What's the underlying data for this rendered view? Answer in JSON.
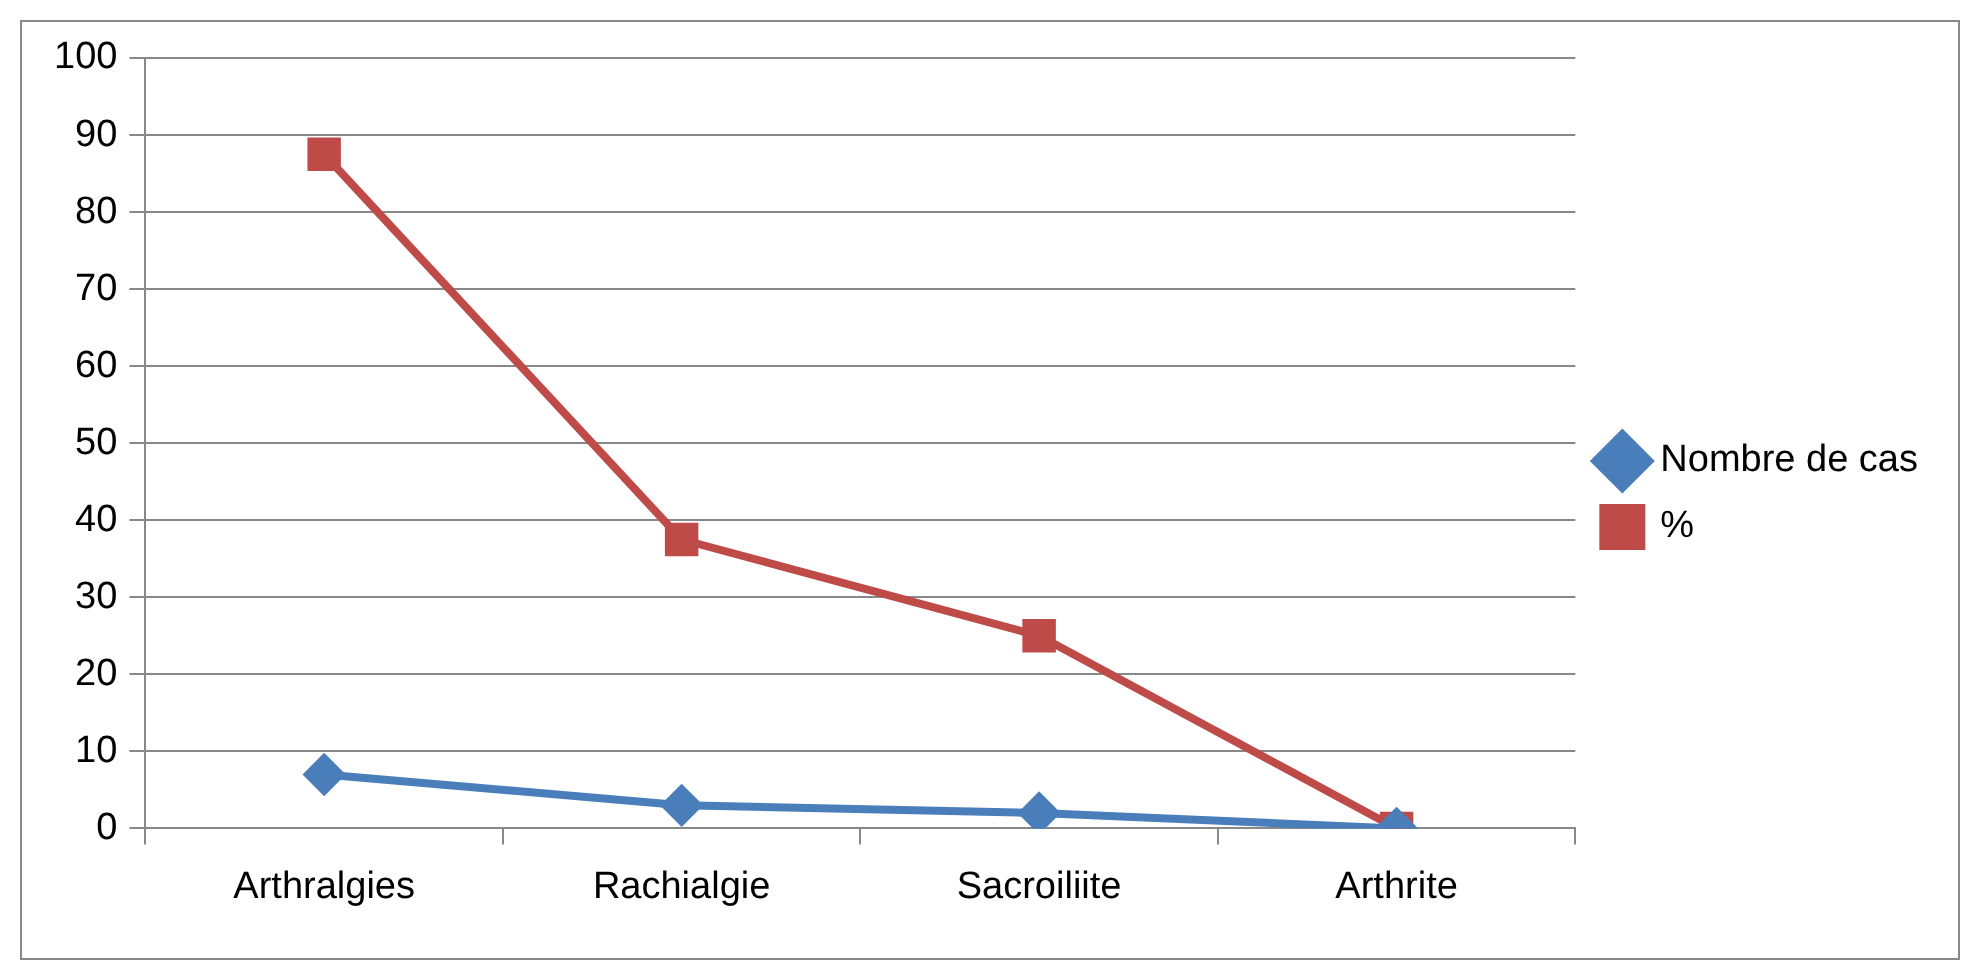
{
  "chart_data": {
    "type": "line",
    "categories": [
      "Arthralgies",
      "Rachialgie",
      "Sacroiliite",
      "Arthrite"
    ],
    "series": [
      {
        "name": "Nombre de cas",
        "color": "#4a7ebb",
        "marker": "diamond",
        "values": [
          7,
          3,
          2,
          0
        ]
      },
      {
        "name": "%",
        "color": "#be4b48",
        "marker": "square",
        "values": [
          87.5,
          37.5,
          25,
          0
        ]
      }
    ],
    "ylim": [
      0,
      100
    ],
    "yticks": [
      0,
      10,
      20,
      30,
      40,
      50,
      60,
      70,
      80,
      90,
      100
    ],
    "grid": "y",
    "legend": "right",
    "line_style": "solid"
  }
}
